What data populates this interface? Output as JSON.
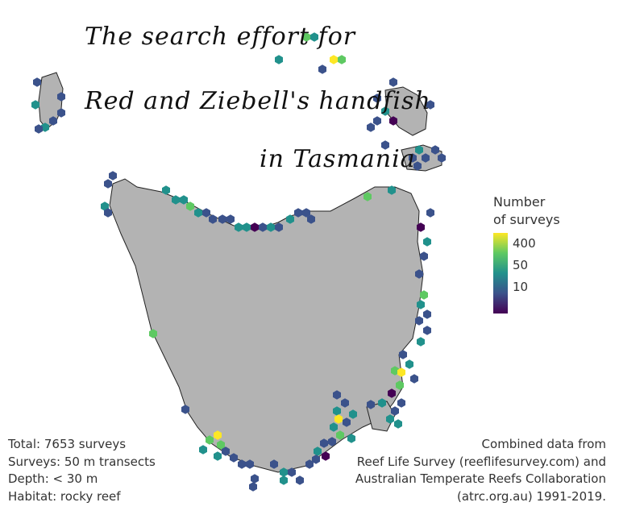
{
  "title": {
    "line1": "The search effort for",
    "line2": "Red and Ziebell's handfish",
    "line3": "in Tasmania"
  },
  "legend": {
    "title_line1": "Number",
    "title_line2": "of surveys",
    "ticks": [
      "400",
      "50",
      "10"
    ],
    "colors": [
      "#440154",
      "#3b528b",
      "#21918c",
      "#5ec962",
      "#fde725"
    ]
  },
  "summary": [
    "Total: 7653 surveys",
    "Surveys: 50 m transects",
    "Depth: < 30 m",
    "Habitat: rocky reef"
  ],
  "credits": [
    "Combined data from",
    "Reef Life Survey (reeflifesurvey.com) and",
    "Australian Temperate Reefs Collaboration",
    "(atrc.org.au) 1991-2019."
  ],
  "land_color": "#b3b3b3"
}
